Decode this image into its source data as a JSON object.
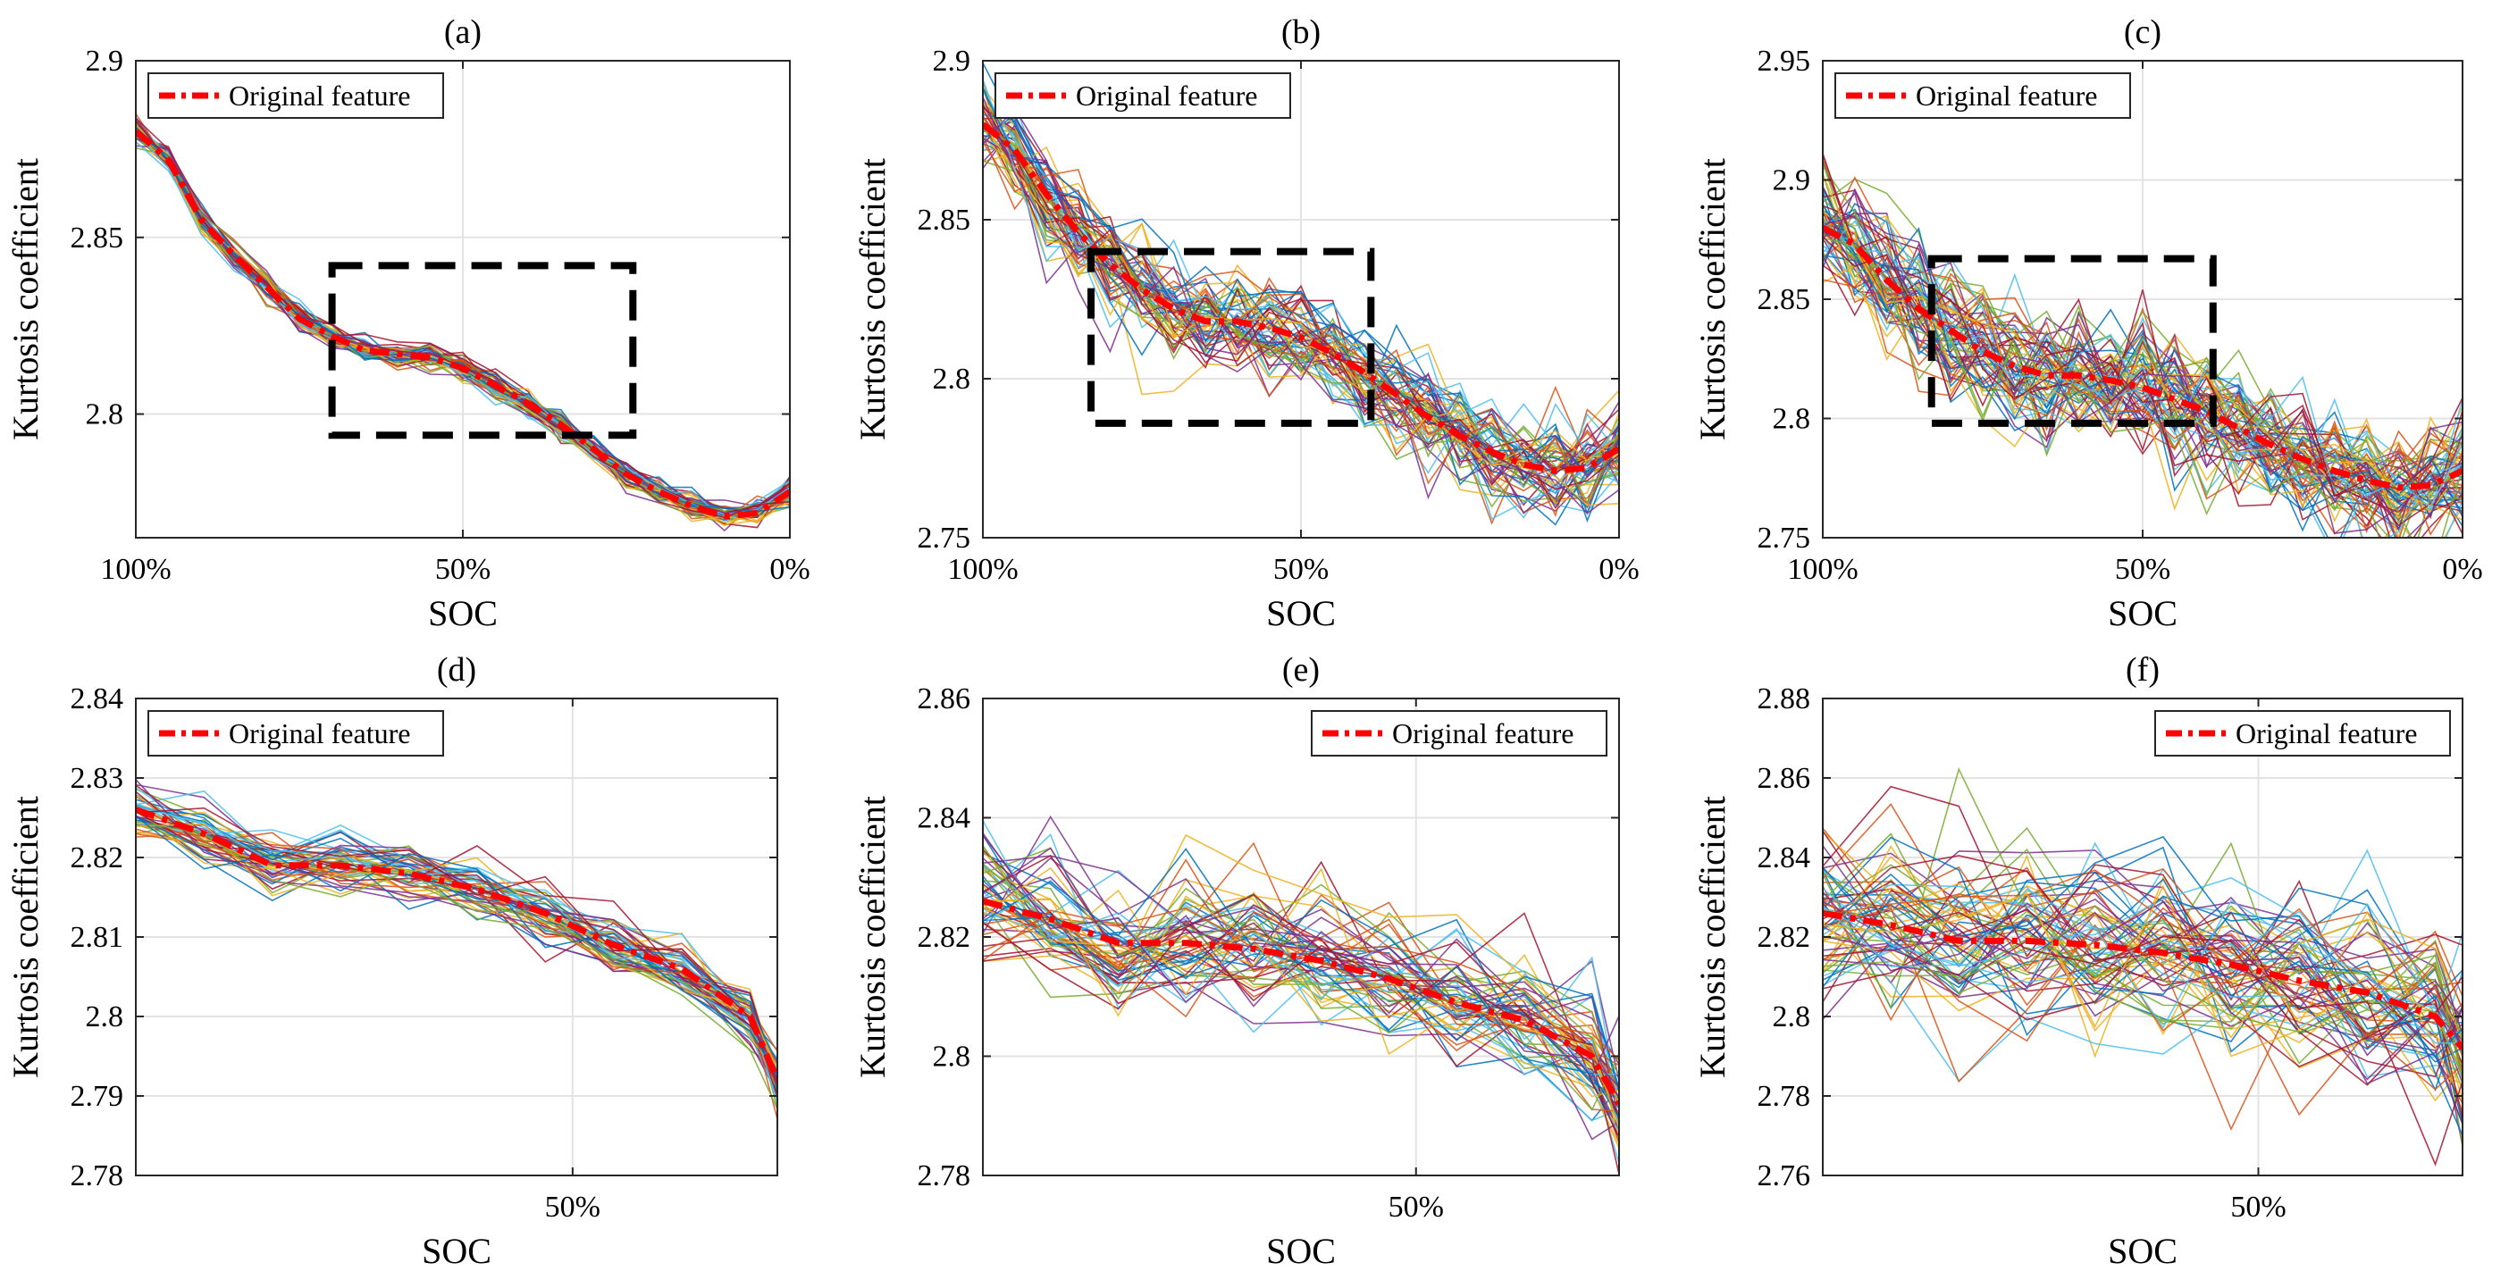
{
  "colors": {
    "mean": "#ff0000",
    "box": "#000000",
    "grid": "#e3e3e3",
    "axis": "#262626",
    "palette": [
      "#0072bd",
      "#d95319",
      "#edb120",
      "#7e2f8e",
      "#77ac30",
      "#4dbeee",
      "#a2142f"
    ]
  },
  "chart_data": [
    {
      "panel": "a",
      "type": "line",
      "title": "(a)",
      "xlabel": "SOC",
      "ylabel": "Kurtosis coefficient",
      "xlim": [
        100,
        0
      ],
      "ylim": [
        2.765,
        2.9
      ],
      "xticks": [
        100,
        50,
        0
      ],
      "xticklabels": [
        "100%",
        "50%",
        "0%"
      ],
      "yticks": [
        2.8,
        2.85,
        2.9
      ],
      "yticklabels": [
        "2.8",
        "2.85",
        "2.9"
      ],
      "grid": true,
      "legend": {
        "label": "Original feature",
        "location": "top-left"
      },
      "box_soc": [
        70,
        24
      ],
      "box_kurtosis": [
        2.794,
        2.842
      ],
      "n_samples": 50,
      "noise_std": 0.0018,
      "series": [
        {
          "name": "Original feature",
          "x": [
            100,
            95,
            90,
            85,
            80,
            75,
            70,
            65,
            60,
            55,
            50,
            45,
            40,
            35,
            30,
            25,
            20,
            15,
            10,
            5,
            0
          ],
          "y": [
            2.88,
            2.872,
            2.855,
            2.845,
            2.836,
            2.827,
            2.822,
            2.818,
            2.817,
            2.816,
            2.813,
            2.808,
            2.803,
            2.797,
            2.79,
            2.783,
            2.778,
            2.774,
            2.771,
            2.772,
            2.778
          ]
        }
      ]
    },
    {
      "panel": "b",
      "type": "line",
      "title": "(b)",
      "xlabel": "SOC",
      "ylabel": "Kurtosis coefficient",
      "xlim": [
        100,
        0
      ],
      "ylim": [
        2.75,
        2.9
      ],
      "xticks": [
        100,
        50,
        0
      ],
      "xticklabels": [
        "100%",
        "50%",
        "0%"
      ],
      "yticks": [
        2.75,
        2.8,
        2.85,
        2.9
      ],
      "yticklabels": [
        "2.75",
        "2.8",
        "2.85",
        "2.9"
      ],
      "grid": true,
      "legend": {
        "label": "Original feature",
        "location": "top-left"
      },
      "box_soc": [
        83,
        39
      ],
      "box_kurtosis": [
        2.786,
        2.84
      ],
      "n_samples": 60,
      "noise_std": 0.0075,
      "series": [
        {
          "name": "Original feature",
          "x": [
            100,
            95,
            90,
            85,
            80,
            75,
            70,
            65,
            60,
            55,
            50,
            45,
            40,
            35,
            30,
            25,
            20,
            15,
            10,
            5,
            0
          ],
          "y": [
            2.88,
            2.872,
            2.858,
            2.846,
            2.836,
            2.828,
            2.822,
            2.818,
            2.818,
            2.816,
            2.813,
            2.808,
            2.802,
            2.795,
            2.788,
            2.782,
            2.777,
            2.773,
            2.771,
            2.772,
            2.778
          ]
        }
      ]
    },
    {
      "panel": "c",
      "type": "line",
      "title": "(c)",
      "xlabel": "SOC",
      "ylabel": "Kurtosis coefficient",
      "xlim": [
        100,
        0
      ],
      "ylim": [
        2.75,
        2.95
      ],
      "xticks": [
        100,
        50,
        0
      ],
      "xticklabels": [
        "100%",
        "50%",
        "0%"
      ],
      "yticks": [
        2.75,
        2.8,
        2.85,
        2.9,
        2.95
      ],
      "yticklabels": [
        "2.75",
        "2.8",
        "2.85",
        "2.9",
        "2.95"
      ],
      "grid": true,
      "legend": {
        "label": "Original feature",
        "location": "top-left"
      },
      "box_soc": [
        83,
        39
      ],
      "box_kurtosis": [
        2.798,
        2.867
      ],
      "n_samples": 70,
      "noise_std": 0.013,
      "series": [
        {
          "name": "Original feature",
          "x": [
            100,
            95,
            90,
            85,
            80,
            75,
            70,
            65,
            60,
            55,
            50,
            45,
            40,
            35,
            30,
            25,
            20,
            15,
            10,
            5,
            0
          ],
          "y": [
            2.88,
            2.873,
            2.858,
            2.846,
            2.837,
            2.828,
            2.822,
            2.818,
            2.818,
            2.816,
            2.813,
            2.808,
            2.803,
            2.796,
            2.789,
            2.783,
            2.778,
            2.774,
            2.771,
            2.772,
            2.778
          ]
        }
      ]
    },
    {
      "panel": "d",
      "type": "line",
      "title": "(d)",
      "xlabel": "SOC",
      "ylabel": "Kurtosis coefficient",
      "xlim": [
        82,
        35
      ],
      "ylim": [
        2.78,
        2.84
      ],
      "xticks": [
        50
      ],
      "xticklabels": [
        "50%"
      ],
      "yticks": [
        2.78,
        2.79,
        2.8,
        2.81,
        2.82,
        2.83,
        2.84
      ],
      "yticklabels": [
        "2.78",
        "2.79",
        "2.8",
        "2.81",
        "2.82",
        "2.83",
        "2.84"
      ],
      "grid": true,
      "legend": {
        "label": "Original feature",
        "location": "top-left"
      },
      "n_samples": 50,
      "noise_std": 0.0018,
      "series": [
        {
          "name": "Original feature",
          "x": [
            82,
            77,
            72,
            67,
            62,
            57,
            52,
            47,
            42,
            37,
            35
          ],
          "y": [
            2.826,
            2.823,
            2.819,
            2.819,
            2.818,
            2.816,
            2.813,
            2.809,
            2.806,
            2.8,
            2.792
          ]
        }
      ]
    },
    {
      "panel": "e",
      "type": "line",
      "title": "(e)",
      "xlabel": "SOC",
      "ylabel": "Kurtosis coefficient",
      "xlim": [
        82,
        35
      ],
      "ylim": [
        2.78,
        2.86
      ],
      "xticks": [
        50
      ],
      "xticklabels": [
        "50%"
      ],
      "yticks": [
        2.78,
        2.8,
        2.82,
        2.84,
        2.86
      ],
      "yticklabels": [
        "2.78",
        "2.8",
        "2.82",
        "2.84",
        "2.86"
      ],
      "grid": true,
      "legend": {
        "label": "Original feature",
        "location": "top-right"
      },
      "n_samples": 60,
      "noise_std": 0.0055,
      "series": [
        {
          "name": "Original feature",
          "x": [
            82,
            77,
            72,
            67,
            62,
            57,
            52,
            47,
            42,
            37,
            35
          ],
          "y": [
            2.826,
            2.823,
            2.819,
            2.819,
            2.818,
            2.816,
            2.813,
            2.809,
            2.806,
            2.8,
            2.792
          ]
        }
      ]
    },
    {
      "panel": "f",
      "type": "line",
      "title": "(f)",
      "xlabel": "SOC",
      "ylabel": "Kurtosis coefficient",
      "xlim": [
        82,
        35
      ],
      "ylim": [
        2.76,
        2.88
      ],
      "xticks": [
        50
      ],
      "xticklabels": [
        "50%"
      ],
      "yticks": [
        2.76,
        2.78,
        2.8,
        2.82,
        2.84,
        2.86,
        2.88
      ],
      "yticklabels": [
        "2.76",
        "2.78",
        "2.8",
        "2.82",
        "2.84",
        "2.86",
        "2.88"
      ],
      "grid": true,
      "legend": {
        "label": "Original feature",
        "location": "top-right"
      },
      "n_samples": 70,
      "noise_std": 0.011,
      "series": [
        {
          "name": "Original feature",
          "x": [
            82,
            77,
            72,
            67,
            62,
            57,
            52,
            47,
            42,
            37,
            35
          ],
          "y": [
            2.826,
            2.823,
            2.819,
            2.819,
            2.818,
            2.816,
            2.813,
            2.809,
            2.806,
            2.8,
            2.792
          ]
        }
      ]
    }
  ]
}
